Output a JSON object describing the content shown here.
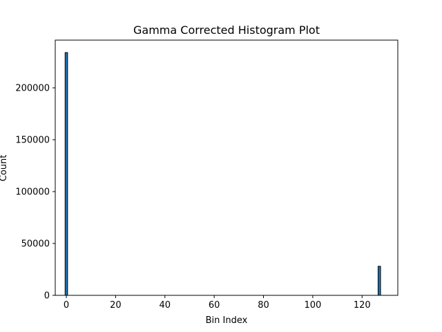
{
  "chart_data": {
    "type": "bar",
    "title": "Gamma Corrected Histogram Plot",
    "xlabel": "Bin Index",
    "ylabel": "Count",
    "xlim": [
      -4.5,
      134.5
    ],
    "ylim": [
      0,
      246000
    ],
    "xticks": [
      0,
      20,
      40,
      60,
      80,
      100,
      120
    ],
    "yticks": [
      0,
      50000,
      100000,
      150000,
      200000
    ],
    "bar_width": 1,
    "bar_color": "#1f77b4",
    "bar_edge_color": "#000000",
    "bins": [
      0,
      127
    ],
    "values": [
      234000,
      28000
    ]
  }
}
